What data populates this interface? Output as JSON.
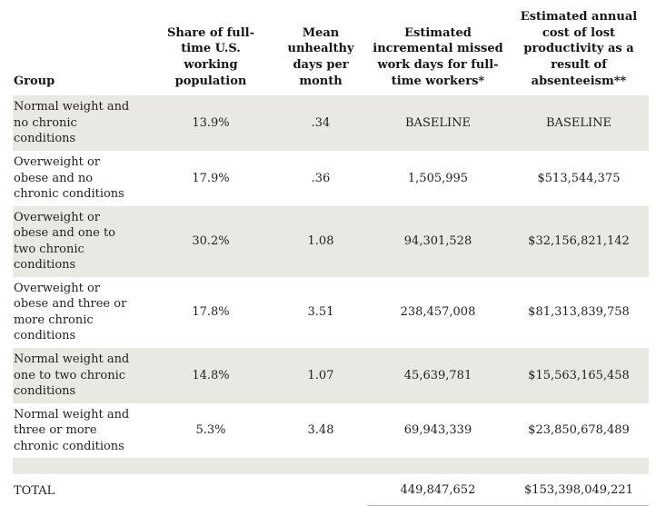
{
  "chart_data": {
    "type": "table",
    "columns": [
      "Group",
      "Share of full-time U.S. working population",
      "Mean unhealthy days per month",
      "Estimated incremental missed work days for full-time workers*",
      "Estimated annual cost of lost productivity as a result of absenteeism**"
    ],
    "rows": [
      {
        "group": "Normal weight and no chronic conditions",
        "share": "13.9%",
        "mean_unhealthy_days": ".34",
        "missed_work_days": "BASELINE",
        "cost": "BASELINE"
      },
      {
        "group": "Overweight or obese and no chronic conditions",
        "share": "17.9%",
        "mean_unhealthy_days": ".36",
        "missed_work_days": "1,505,995",
        "cost": "$513,544,375"
      },
      {
        "group": "Overweight or obese and one to two chronic conditions",
        "share": "30.2%",
        "mean_unhealthy_days": "1.08",
        "missed_work_days": "94,301,528",
        "cost": "$32,156,821,142"
      },
      {
        "group": "Overweight or obese and three or more chronic conditions",
        "share": "17.8%",
        "mean_unhealthy_days": "3.51",
        "missed_work_days": "238,457,008",
        "cost": "$81,313,839,758"
      },
      {
        "group": "Normal weight and one to two chronic conditions",
        "share": "14.8%",
        "mean_unhealthy_days": "1.07",
        "missed_work_days": "45,639,781",
        "cost": "$15,563,165,458"
      },
      {
        "group": "Normal weight and three or more chronic conditions",
        "share": "5.3%",
        "mean_unhealthy_days": "3.48",
        "missed_work_days": "69,943,339",
        "cost": "$23,850,678,489"
      }
    ],
    "total": {
      "label": "TOTAL",
      "missed_work_days": "449,847,652",
      "cost": "$153,398,049,221"
    },
    "layout": {
      "striped_rows": true,
      "stripe_color": "#e9e8e2",
      "text_color": "#1f1f1f",
      "total_rule_color": "#b8b7b0",
      "header_alignment": "center-bottom",
      "group_column_alignment": "left"
    }
  }
}
